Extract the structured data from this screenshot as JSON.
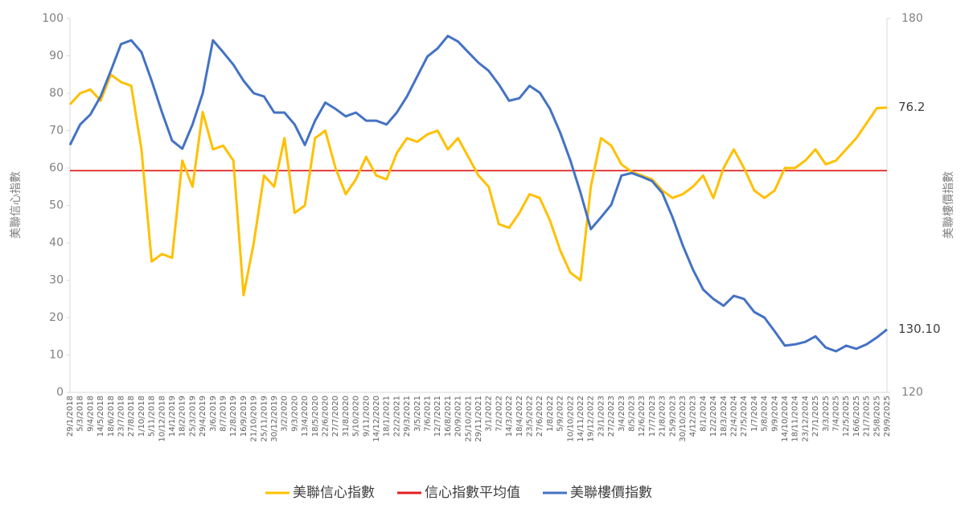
{
  "chart_data": {
    "type": "line",
    "y_label": "美聯信心指數",
    "y2_label": "美聯樓價指數",
    "categories": [
      "29/1/2018",
      "5/3/2018",
      "9/4/2018",
      "14/5/2018",
      "18/6/2018",
      "23/7/2018",
      "27/8/2018",
      "1/10/2018",
      "5/11/2018",
      "10/12/2018",
      "14/1/2019",
      "18/2/2019",
      "25/3/2019",
      "29/4/2019",
      "3/6/2019",
      "8/7/2019",
      "12/8/2019",
      "16/9/2019",
      "21/10/2019",
      "25/11/2019",
      "30/12/2019",
      "3/2/2020",
      "9/3/2020",
      "13/4/2020",
      "18/5/2020",
      "22/6/2020",
      "27/7/2020",
      "31/8/2020",
      "5/10/2020",
      "9/11/2020",
      "14/12/2020",
      "18/1/2021",
      "22/2/2021",
      "29/3/2021",
      "3/5/2021",
      "7/6/2021",
      "12/7/2021",
      "16/8/2021",
      "20/9/2021",
      "25/10/2021",
      "29/11/2021",
      "3/1/2022",
      "7/2/2022",
      "14/3/2022",
      "18/4/2022",
      "23/5/2022",
      "27/6/2022",
      "1/8/2022",
      "5/9/2022",
      "10/10/2022",
      "14/11/2022",
      "19/12/2022",
      "23/1/2023",
      "27/2/2023",
      "3/4/2023",
      "8/5/2023",
      "12/6/2023",
      "17/7/2023",
      "21/8/2023",
      "25/9/2023",
      "30/10/2023",
      "4/12/2023",
      "8/1/2024",
      "12/2/2024",
      "18/3/2024",
      "22/4/2024",
      "27/5/2024",
      "1/7/2024",
      "5/8/2024",
      "9/9/2024",
      "14/10/2024",
      "18/11/2024",
      "23/12/2024",
      "27/1/2025",
      "3/3/2025",
      "7/4/2025",
      "12/5/2025",
      "16/6/2025",
      "21/7/2025",
      "25/8/2025",
      "29/9/2025"
    ],
    "series": [
      {
        "name": "美聯信心指數",
        "color": "#ffc000",
        "values": [
          77,
          80,
          81,
          78,
          85,
          83,
          82,
          65,
          35,
          37,
          36,
          62,
          55,
          75,
          65,
          66,
          62,
          26,
          40,
          58,
          55,
          68,
          48,
          50,
          68,
          70,
          60,
          53,
          57,
          63,
          58,
          57,
          64,
          68,
          67,
          69,
          70,
          65,
          68,
          63,
          58,
          55,
          45,
          44,
          48,
          53,
          52,
          46,
          38,
          32,
          30,
          55,
          68,
          66,
          61,
          59,
          58,
          57,
          54,
          52,
          53,
          55,
          58,
          52,
          60,
          65,
          60,
          54,
          52,
          54,
          60,
          60,
          62,
          65,
          61,
          62,
          65,
          68,
          72,
          76,
          76.2
        ]
      },
      {
        "name": "美聯樓價指數",
        "color": "#4472c4",
        "axis": "y2",
        "values": [
          159.7,
          163,
          164.6,
          167.5,
          171.6,
          175.9,
          176.5,
          174.6,
          170,
          165,
          160.4,
          159.1,
          163,
          168,
          176.5,
          174.6,
          172.6,
          170,
          168,
          167.5,
          164.9,
          164.9,
          163,
          159.7,
          163.6,
          166.5,
          165.5,
          164.3,
          164.9,
          163.6,
          163.6,
          163,
          164.9,
          167.5,
          170.7,
          173.9,
          175.2,
          177.2,
          176.3,
          174.6,
          172.9,
          171.6,
          169.4,
          166.8,
          167.2,
          169.2,
          168.1,
          165.5,
          161.7,
          157.2,
          152,
          146.2,
          148.1,
          150.1,
          154.8,
          155.2,
          154.6,
          153.9,
          152,
          148.1,
          143.6,
          139.7,
          136.5,
          135,
          133.9,
          135.5,
          135,
          132.9,
          132,
          129.8,
          127.5,
          127.7,
          128.1,
          129,
          127.2,
          126.6,
          127.5,
          127,
          127.7,
          128.8,
          130.1
        ]
      }
    ],
    "reference_lines": [
      {
        "name": "信心指數平均值",
        "color": "#e02020",
        "value": 59.3
      }
    ],
    "annotations": [
      {
        "label": "76.2",
        "value": 76.2,
        "axis": "y"
      },
      {
        "label": "130.10",
        "value": 130.1,
        "axis": "y2"
      }
    ],
    "ylim": [
      0,
      100
    ],
    "yticks": [
      0,
      10,
      20,
      30,
      40,
      50,
      60,
      70,
      80,
      90,
      100
    ],
    "y2lim": [
      120,
      180
    ],
    "y2ticks": [
      120,
      180
    ]
  }
}
